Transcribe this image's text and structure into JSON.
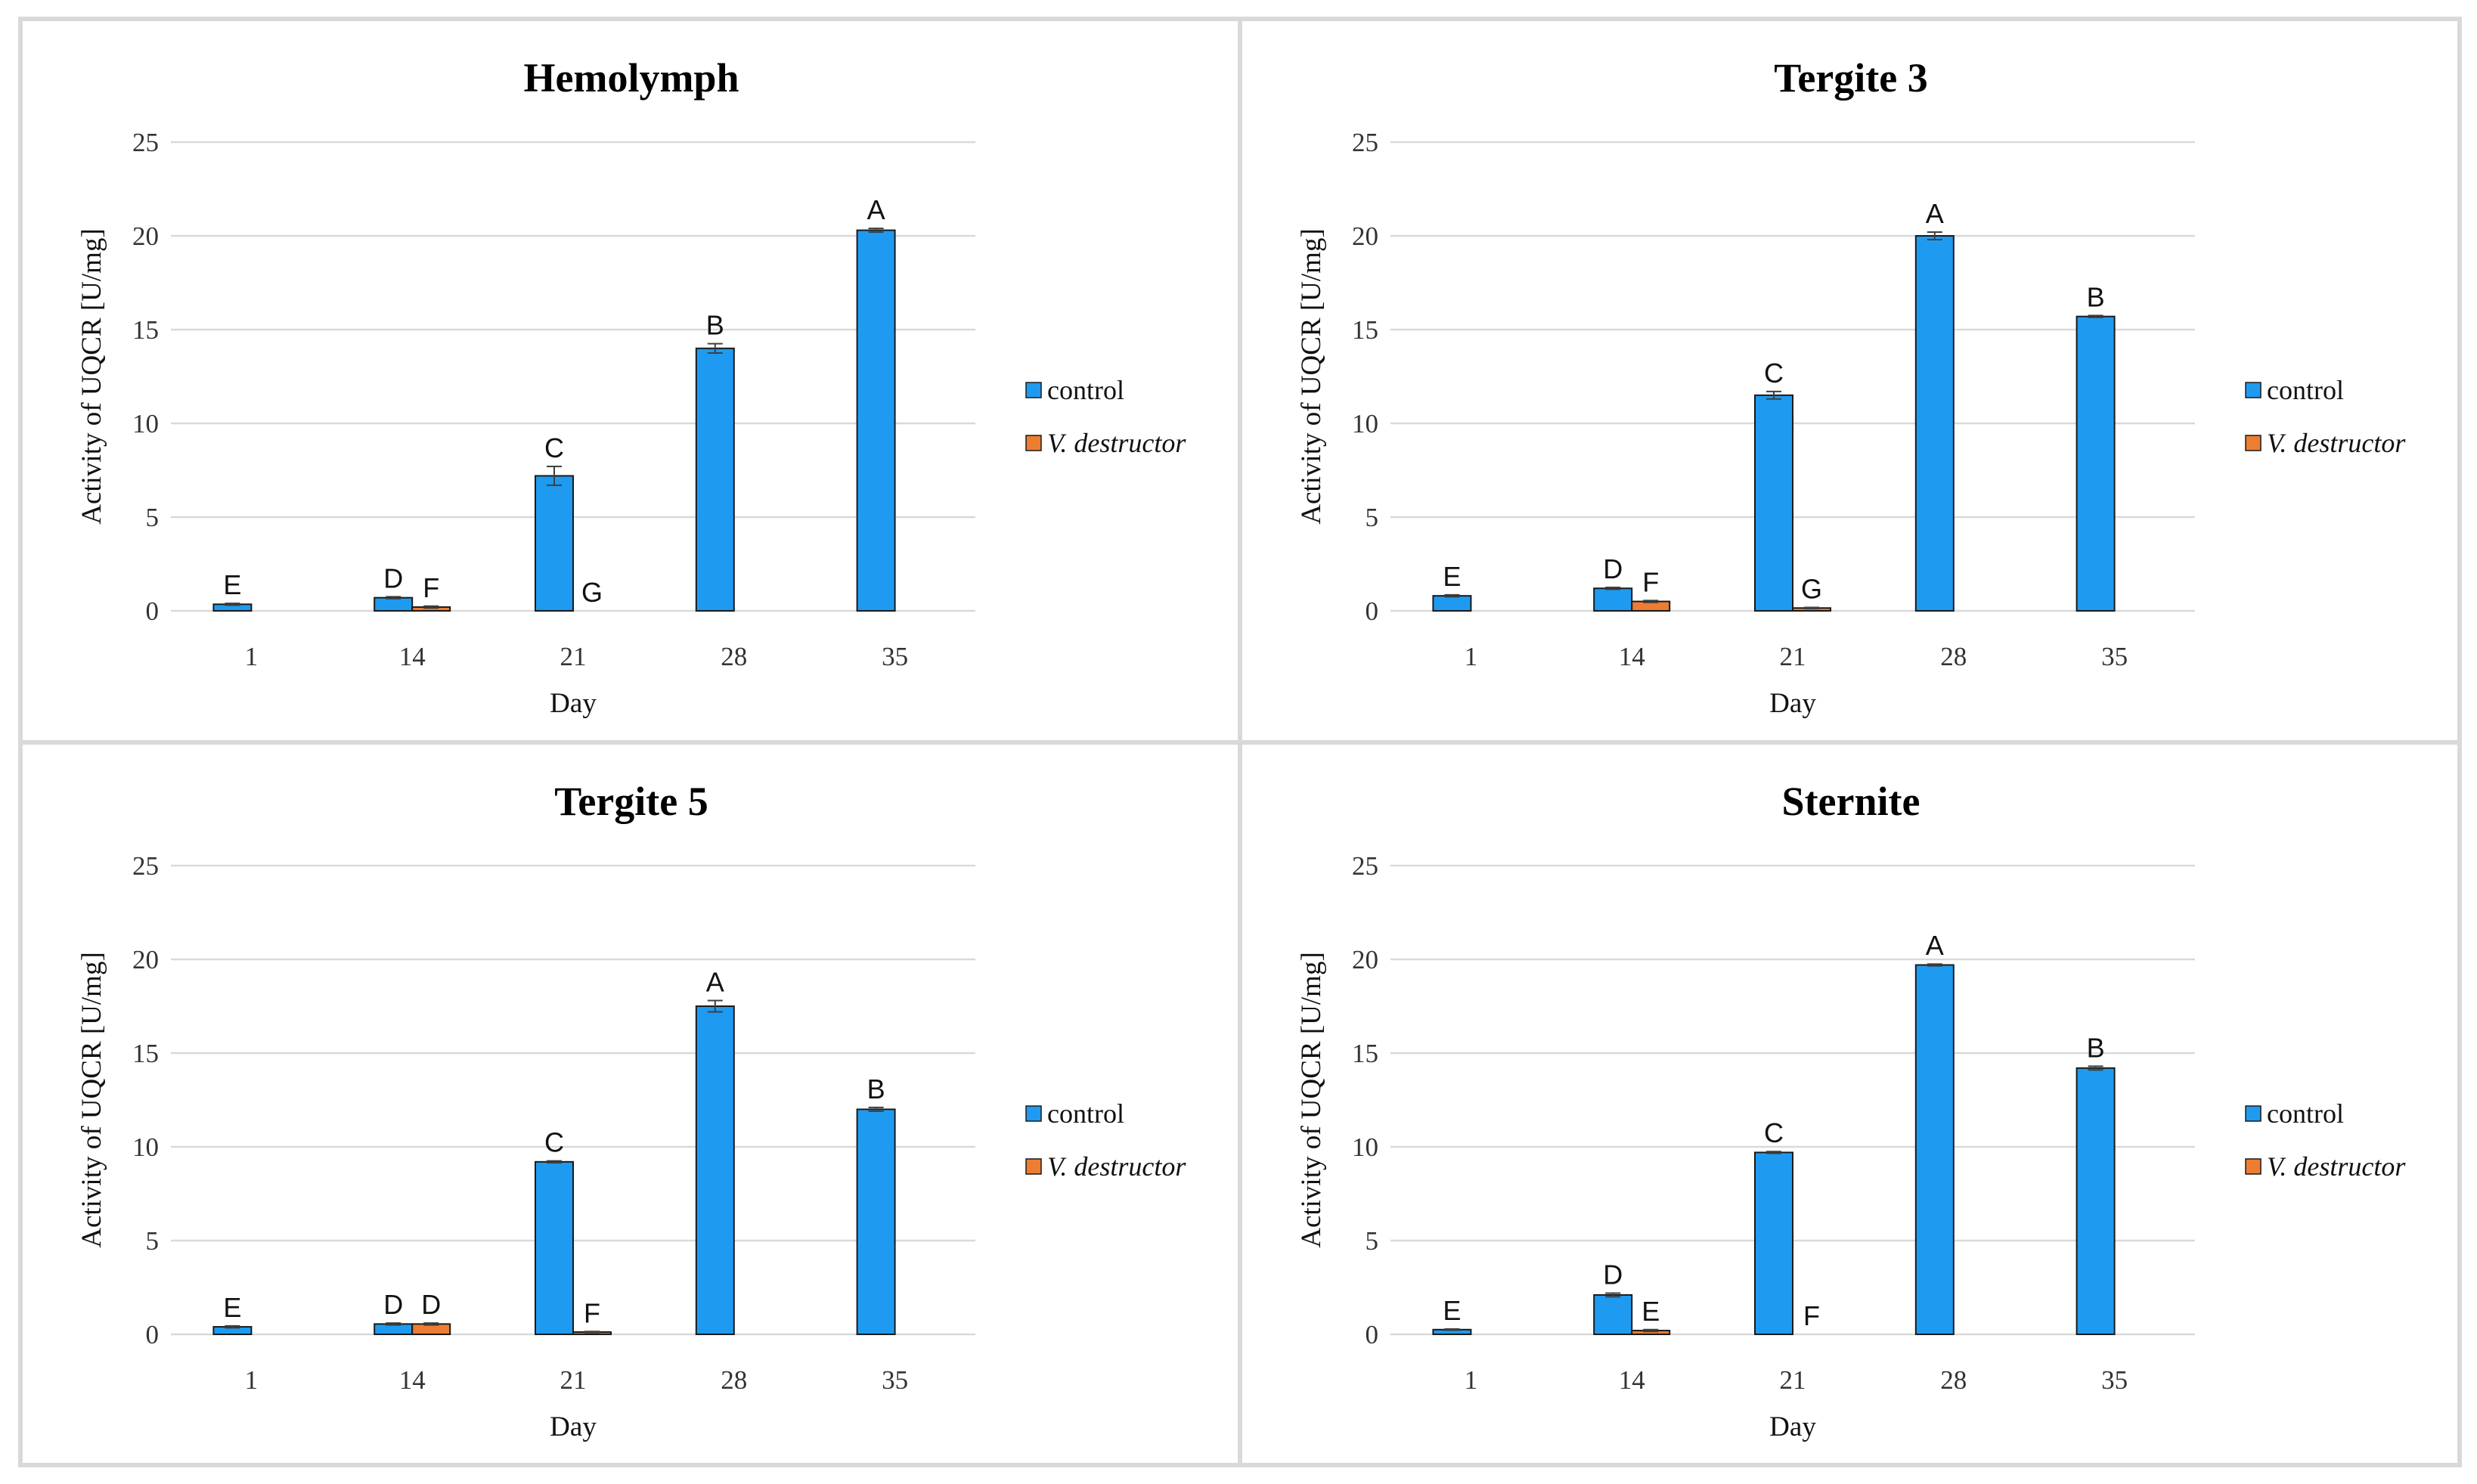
{
  "chart_data": [
    {
      "type": "bar",
      "title": "Hemolymph",
      "xlabel": "Day",
      "ylabel": "Activity of UQCR [U/mg]",
      "ylim": [
        0,
        25
      ],
      "yticks": [
        "0",
        "5",
        "10",
        "15",
        "20",
        "25"
      ],
      "categories": [
        "1",
        "14",
        "21",
        "28",
        "35"
      ],
      "series": [
        {
          "name": "control",
          "color": "#1E9BF0",
          "values": [
            0.35,
            0.7,
            7.2,
            14.0,
            20.3
          ],
          "errors": [
            0.05,
            0.05,
            0.5,
            0.25,
            0.1
          ],
          "labels": [
            "E",
            "D",
            "C",
            "B",
            "A"
          ]
        },
        {
          "name": "V. destructor",
          "color": "#ED7D31",
          "values": [
            0,
            0.2,
            0,
            null,
            null
          ],
          "errors": [
            0,
            0.05,
            0,
            null,
            null
          ],
          "labels": [
            "",
            "F",
            "G",
            "",
            ""
          ]
        }
      ],
      "legend": "right"
    },
    {
      "type": "bar",
      "title": "Tergite 3",
      "xlabel": "Day",
      "ylabel": "Activity of UQCR [U/mg]",
      "ylim": [
        0,
        25
      ],
      "yticks": [
        "0",
        "5",
        "10",
        "15",
        "20",
        "25"
      ],
      "categories": [
        "1",
        "14",
        "21",
        "28",
        "35"
      ],
      "series": [
        {
          "name": "control",
          "color": "#1E9BF0",
          "values": [
            0.8,
            1.2,
            11.5,
            20.0,
            15.7
          ],
          "errors": [
            0.05,
            0.05,
            0.2,
            0.2,
            0.05
          ],
          "labels": [
            "E",
            "D",
            "C",
            "A",
            "B"
          ]
        },
        {
          "name": "V. destructor",
          "color": "#ED7D31",
          "values": [
            0,
            0.5,
            0.15,
            null,
            null
          ],
          "errors": [
            0,
            0.05,
            0.03,
            null,
            null
          ],
          "labels": [
            "",
            "F",
            "G",
            "",
            ""
          ]
        }
      ],
      "legend": "right"
    },
    {
      "type": "bar",
      "title": "Tergite 5",
      "xlabel": "Day",
      "ylabel": "Activity of UQCR [U/mg]",
      "ylim": [
        0,
        25
      ],
      "yticks": [
        "0",
        "5",
        "10",
        "15",
        "20",
        "25"
      ],
      "categories": [
        "1",
        "14",
        "21",
        "28",
        "35"
      ],
      "series": [
        {
          "name": "control",
          "color": "#1E9BF0",
          "values": [
            0.4,
            0.55,
            9.2,
            17.5,
            12.0
          ],
          "errors": [
            0.05,
            0.05,
            0.05,
            0.3,
            0.1
          ],
          "labels": [
            "E",
            "D",
            "C",
            "A",
            "B"
          ]
        },
        {
          "name": "V. destructor",
          "color": "#ED7D31",
          "values": [
            0,
            0.55,
            0.12,
            null,
            null
          ],
          "errors": [
            0,
            0.05,
            0.03,
            null,
            null
          ],
          "labels": [
            "",
            "D",
            "F",
            "",
            ""
          ]
        }
      ],
      "legend": "right"
    },
    {
      "type": "bar",
      "title": "Sternite",
      "xlabel": "Day",
      "ylabel": "Activity of UQCR [U/mg]",
      "ylim": [
        0,
        25
      ],
      "yticks": [
        "0",
        "5",
        "10",
        "15",
        "20",
        "25"
      ],
      "categories": [
        "1",
        "14",
        "21",
        "28",
        "35"
      ],
      "series": [
        {
          "name": "control",
          "color": "#1E9BF0",
          "values": [
            0.25,
            2.1,
            9.7,
            19.7,
            14.2
          ],
          "errors": [
            0.03,
            0.1,
            0.05,
            0.05,
            0.1
          ],
          "labels": [
            "E",
            "D",
            "C",
            "A",
            "B"
          ]
        },
        {
          "name": "V. destructor",
          "color": "#ED7D31",
          "values": [
            0,
            0.2,
            0,
            null,
            null
          ],
          "errors": [
            0,
            0.05,
            0,
            null,
            null
          ],
          "labels": [
            "",
            "E",
            "F",
            "",
            ""
          ]
        }
      ],
      "legend": "right"
    }
  ]
}
